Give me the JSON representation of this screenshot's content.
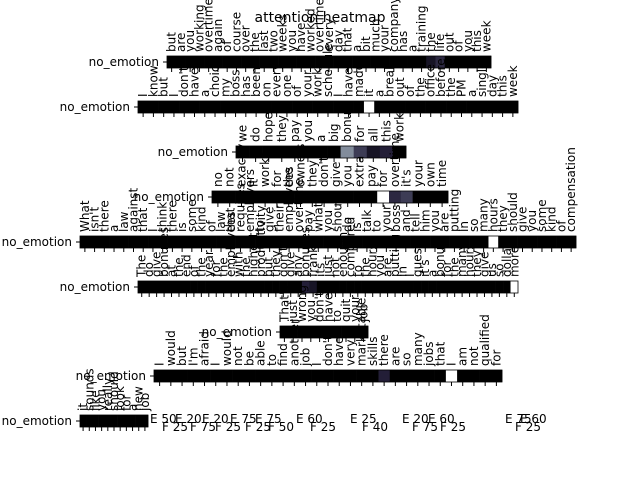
{
  "chart_data": {
    "type": "heatmap",
    "title": "attention heatmap",
    "row_label": "no_emotion",
    "colormap": "magma",
    "rows": [
      {
        "label": "no_emotion",
        "tokens": [
          "but",
          "are",
          "you",
          "working",
          "overtime",
          "again",
          "of",
          "course",
          "over",
          "the",
          "last",
          "two",
          "weeks",
          "you",
          "have",
          "worked",
          "overtime",
          "every",
          "day",
          "that",
          "a",
          "bit",
          "much",
          "your",
          "company",
          "has",
          "a",
          "training",
          "the",
          "life",
          "out",
          "of",
          "you",
          "this",
          "week"
        ],
        "weights": [
          0,
          0,
          0,
          0,
          0,
          0,
          0,
          0,
          0,
          0,
          0,
          0,
          0,
          0,
          0,
          0,
          0,
          0,
          0,
          0,
          0,
          0,
          0,
          0,
          0,
          0,
          0,
          0,
          0.1,
          0.2,
          0,
          0,
          0,
          0,
          0
        ]
      },
      {
        "label": "no_emotion",
        "tokens": [
          "I",
          "know",
          "but",
          "I",
          "don't",
          "have",
          "a",
          "choice",
          "my",
          "boss",
          "has",
          "been",
          "on",
          "every",
          "one",
          "of",
          "your",
          "work",
          "schedule",
          "I",
          "have",
          "made",
          "it",
          "a",
          "break",
          "out",
          "of",
          "the",
          "office",
          "before",
          "the",
          "PM",
          "a",
          "single",
          "day",
          "this",
          "week"
        ],
        "weights": [
          0,
          0,
          0,
          0,
          0,
          0,
          0,
          0,
          0,
          0,
          0,
          0,
          0,
          0,
          0,
          0,
          0,
          0,
          0,
          0,
          0,
          0,
          1.0,
          0,
          0,
          0,
          0,
          0,
          0,
          0,
          0,
          0,
          0,
          0,
          0,
          0,
          0
        ]
      },
      {
        "label": "no_emotion",
        "tokens": [
          "we",
          "do",
          "hope",
          "they",
          "pay",
          "you",
          "a",
          "big",
          "bonus",
          "for",
          "all",
          "this",
          "work"
        ],
        "weights": [
          0,
          0,
          0,
          0,
          0,
          0,
          0,
          0,
          0.6,
          0.3,
          0.1,
          0.15,
          0
        ]
      },
      {
        "label": "no_emotion",
        "tokens": [
          "no",
          "not",
          "exactly",
          "it",
          "works",
          "for",
          "the",
          "owners",
          "they",
          "don't",
          "give",
          "you",
          "extra",
          "pay",
          "for",
          "overtime",
          "it's",
          "your",
          "own",
          "time"
        ],
        "weights": [
          0,
          0,
          0,
          0,
          0,
          0,
          0,
          0,
          0,
          0,
          0,
          0,
          0,
          0,
          1.0,
          0.2,
          0.3,
          0,
          0,
          0
        ]
      },
      {
        "label": "no_emotion",
        "tokens": [
          "What",
          "isn't",
          "there",
          "a",
          "law",
          "against",
          "that",
          "I",
          "think",
          "there",
          "is",
          "some",
          "kind",
          "of",
          "law",
          "that",
          "requires",
          "employers",
          "to",
          "give",
          "their",
          "employees",
          "overtime",
          "pay",
          "what",
          "you",
          "should",
          "do",
          "is",
          "talk",
          "to",
          "your",
          "boss",
          "and",
          "tell",
          "him",
          "you",
          "are",
          "putting",
          "in",
          "so",
          "many",
          "hours",
          "they",
          "should",
          "give",
          "you",
          "some",
          "kind",
          "of",
          "compensation"
        ],
        "weights": [
          0,
          0,
          0,
          0,
          0,
          0,
          0,
          0,
          0,
          0,
          0,
          0,
          0,
          0,
          0,
          0,
          0,
          0,
          0,
          0,
          0,
          0,
          0,
          0,
          0,
          0,
          0,
          0,
          0,
          0,
          0,
          0,
          0,
          0,
          0,
          0,
          0,
          0,
          0,
          0,
          0,
          0,
          1.0,
          0,
          0,
          0,
          0,
          0,
          0,
          0,
          0
        ]
      },
      {
        "label": "no_emotion",
        "tokens": [
          "The",
          "do",
          "give",
          "bonuses",
          "at",
          "the",
          "end",
          "of",
          "the",
          "year",
          "for",
          "the",
          "employees",
          "with",
          "the",
          "highest",
          "productivity",
          "but",
          "they",
          "don't",
          "give",
          "any",
          "bonuses",
          "frankly",
          "its",
          "just",
          "not",
          "enough",
          "compared",
          "to",
          "the",
          "hours",
          "you",
          "are",
          "putting",
          "in",
          "I",
          "guess",
          "it's",
          "a",
          "bonus",
          "for",
          "the",
          "many",
          "hours",
          "they",
          "give",
          "us",
          "so",
          "dollars",
          "more"
        ],
        "weights": [
          0,
          0,
          0,
          0,
          0,
          0,
          0,
          0,
          0,
          0,
          0,
          0,
          0,
          0,
          0,
          0,
          0,
          0,
          0,
          0,
          0,
          0,
          0.15,
          0.1,
          0,
          0,
          0,
          0,
          0,
          0,
          0,
          0,
          0,
          0,
          0,
          0,
          0,
          0,
          0,
          0,
          0,
          0,
          0,
          0,
          0,
          0,
          0,
          0,
          0,
          0,
          1.0
        ]
      },
      {
        "label": "no_emotion",
        "tokens": [
          "That's",
          "just",
          "wrong",
          "you",
          "don't",
          "have",
          "to",
          "quit",
          "your",
          "job"
        ],
        "weights": [
          0,
          0,
          0,
          0,
          0,
          0,
          0,
          0,
          0,
          0
        ]
      },
      {
        "label": "no_emotion",
        "tokens": [
          "I",
          "would",
          "but",
          "I'm",
          "afraid",
          "I",
          "would",
          "not",
          "be",
          "able",
          "to",
          "find",
          "another",
          "job",
          "I",
          "don't",
          "have",
          "very",
          "marketable",
          "skills",
          "there",
          "are",
          "so",
          "many",
          "jobs",
          "that",
          "I",
          "am",
          "not",
          "qualified",
          "for"
        ],
        "weights": [
          0,
          0,
          0,
          0,
          0,
          0,
          0,
          0,
          0,
          0,
          0,
          0,
          0,
          0,
          0,
          0,
          0,
          0,
          0,
          0,
          0.15,
          0,
          0,
          0,
          0,
          0,
          1.0,
          0,
          0,
          0,
          0
        ]
      },
      {
        "label": "no_emotion",
        "tokens": [
          "it",
          "sounds",
          "like",
          "you",
          "really",
          "should",
          "look",
          "for",
          "a",
          "new",
          "job"
        ],
        "weights": [
          0,
          0,
          0,
          0,
          0,
          0,
          0,
          0,
          0,
          0,
          0
        ]
      }
    ],
    "tick_labels": [
      "E 50",
      "F 25",
      "E 20",
      "F 75",
      "E 20",
      "F 25",
      "E 75",
      "F 25",
      "E 75",
      "F 50",
      "E 60",
      "F 25",
      "E 25",
      "F 40",
      "E 20",
      "F 75",
      "E 60",
      "F 25",
      "E 75",
      "F 25",
      "E 60"
    ]
  }
}
